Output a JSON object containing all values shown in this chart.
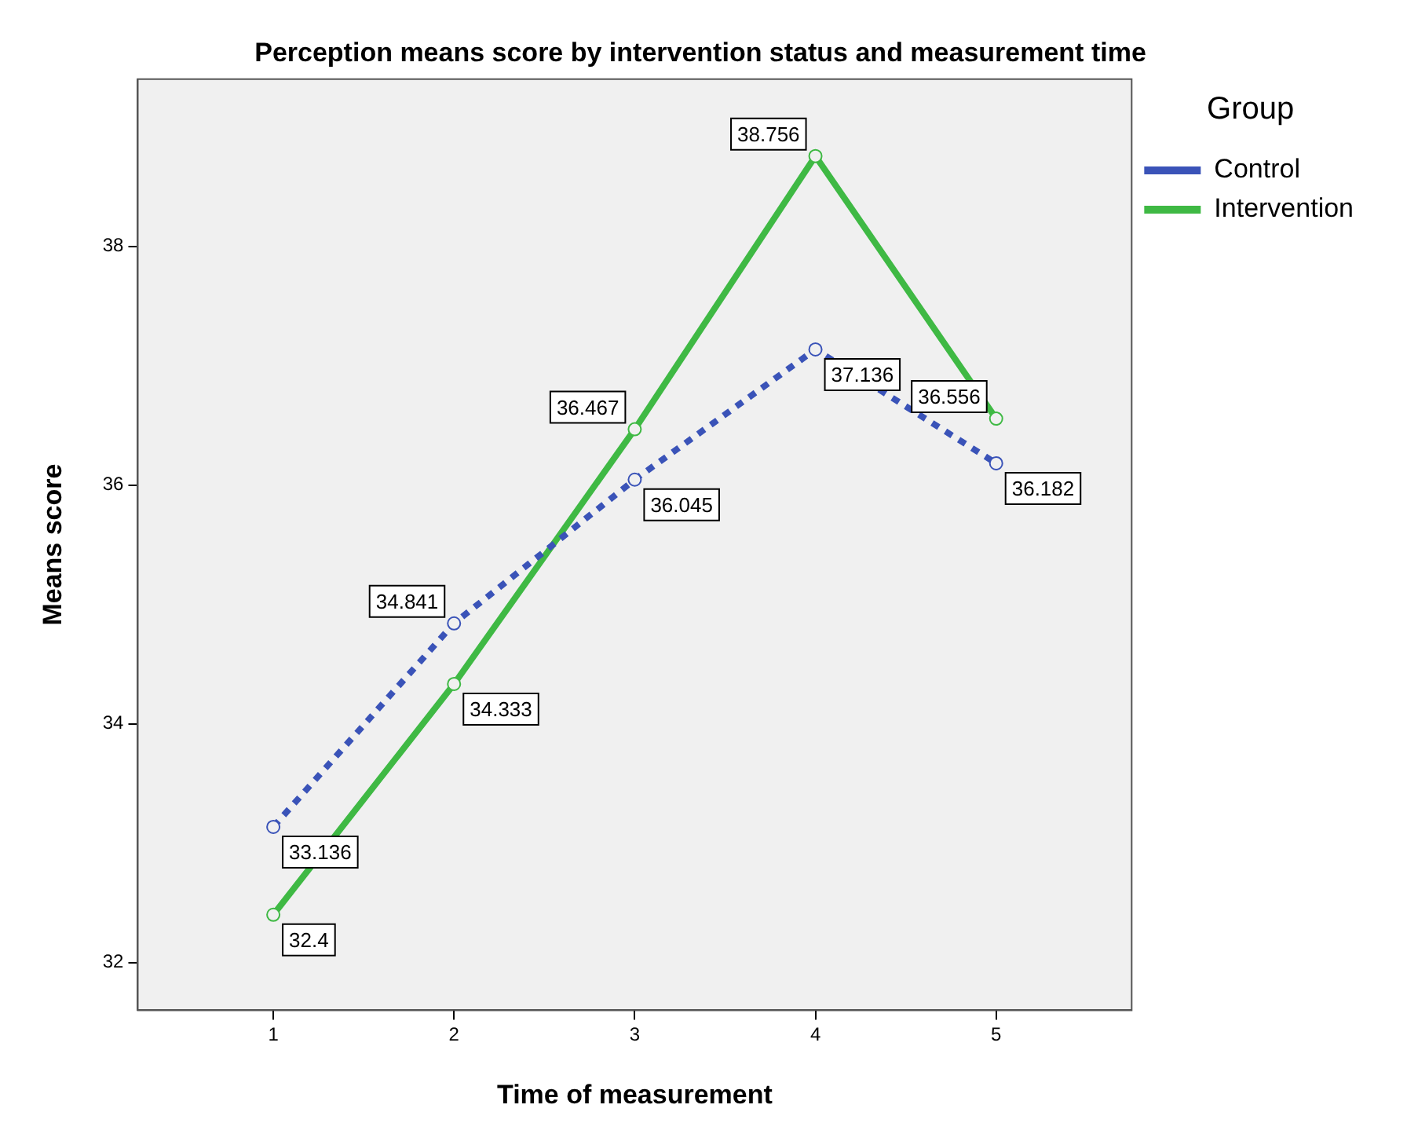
{
  "chart_data": {
    "type": "line",
    "title": "Perception means score by intervention status and measurement time",
    "xlabel": "Time of measurement",
    "ylabel": "Means score",
    "legend_title": "Group",
    "legend": "right",
    "grid": false,
    "marker": "circle",
    "data_labels": true,
    "x": [
      1,
      2,
      3,
      4,
      5
    ],
    "xlim": [
      0.25,
      5.75
    ],
    "xticks": [
      1,
      2,
      3,
      4,
      5
    ],
    "ylim": [
      31.6,
      39.4
    ],
    "yticks": [
      32,
      34,
      36,
      38
    ],
    "series": [
      {
        "name": "Control",
        "color": "#3a53b8",
        "line_style": "dotted",
        "values": [
          33.136,
          34.841,
          36.045,
          37.136,
          36.182
        ]
      },
      {
        "name": "Intervention",
        "color": "#3fb944",
        "line_style": "solid",
        "values": [
          32.4,
          34.333,
          36.467,
          38.756,
          36.556
        ]
      }
    ]
  }
}
